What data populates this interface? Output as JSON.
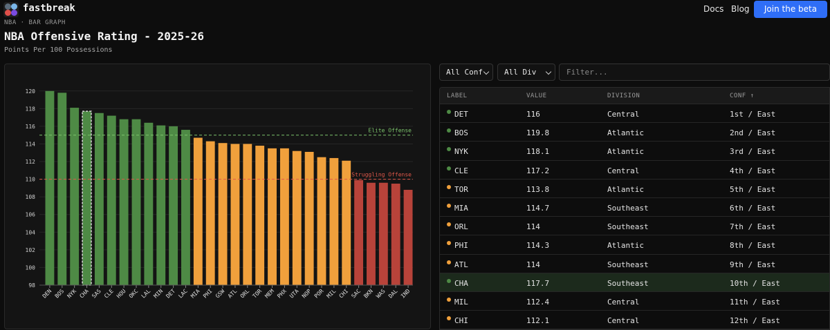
{
  "header": {
    "brand": "fastbreak",
    "nav": [
      {
        "label": "Docs"
      },
      {
        "label": "Blog"
      }
    ],
    "cta": "Join the beta"
  },
  "page": {
    "breadcrumb": "NBA · BAR GRAPH",
    "title": "NBA Offensive Rating - 2025-26",
    "subtitle": "Points Per 100 Possessions"
  },
  "controls": {
    "conf_select": "All Conf",
    "div_select": "All Div",
    "filter_placeholder": "Filter..."
  },
  "table": {
    "columns": [
      "LABEL",
      "VALUE",
      "DIVISION",
      "CONF ↑"
    ],
    "rows": [
      {
        "label": "DET",
        "value": "116",
        "division": "Central",
        "conf": "1st / East",
        "tier": "elite"
      },
      {
        "label": "BOS",
        "value": "119.8",
        "division": "Atlantic",
        "conf": "2nd / East",
        "tier": "elite"
      },
      {
        "label": "NYK",
        "value": "118.1",
        "division": "Atlantic",
        "conf": "3rd / East",
        "tier": "elite"
      },
      {
        "label": "CLE",
        "value": "117.2",
        "division": "Central",
        "conf": "4th / East",
        "tier": "elite"
      },
      {
        "label": "TOR",
        "value": "113.8",
        "division": "Atlantic",
        "conf": "5th / East",
        "tier": "mid"
      },
      {
        "label": "MIA",
        "value": "114.7",
        "division": "Southeast",
        "conf": "6th / East",
        "tier": "mid"
      },
      {
        "label": "ORL",
        "value": "114",
        "division": "Southeast",
        "conf": "7th / East",
        "tier": "mid"
      },
      {
        "label": "PHI",
        "value": "114.3",
        "division": "Atlantic",
        "conf": "8th / East",
        "tier": "mid"
      },
      {
        "label": "ATL",
        "value": "114",
        "division": "Southeast",
        "conf": "9th / East",
        "tier": "mid"
      },
      {
        "label": "CHA",
        "value": "117.7",
        "division": "Southeast",
        "conf": "10th / East",
        "tier": "elite",
        "highlighted": true
      },
      {
        "label": "MIL",
        "value": "112.4",
        "division": "Central",
        "conf": "11th / East",
        "tier": "mid"
      },
      {
        "label": "CHI",
        "value": "112.1",
        "division": "Central",
        "conf": "12th / East",
        "tier": "mid"
      }
    ]
  },
  "colors": {
    "elite": "#4e8a45",
    "mid": "#f0a03c",
    "struggling": "#b8433a",
    "elite_line": "#7cc46c",
    "struggling_line": "#e0584a",
    "accent": "#2f6ef7"
  },
  "chart_data": {
    "type": "bar",
    "title": "NBA Offensive Rating - 2025-26",
    "ylabel": "Points Per 100 Possessions",
    "ylim": [
      98,
      121
    ],
    "yticks": [
      98,
      100,
      102,
      104,
      106,
      108,
      110,
      112,
      114,
      116,
      118,
      120
    ],
    "categories": [
      "DEN",
      "BOS",
      "NYK",
      "CHA",
      "SAS",
      "CLE",
      "HOU",
      "OKC",
      "LAL",
      "MIN",
      "DET",
      "LAC",
      "MIA",
      "PHI",
      "GSW",
      "ATL",
      "ORL",
      "TOR",
      "MEM",
      "PHX",
      "UTA",
      "NOP",
      "POR",
      "MIL",
      "CHI",
      "SAC",
      "BKN",
      "WAS",
      "DAL",
      "IND"
    ],
    "values": [
      120.0,
      119.8,
      118.1,
      117.7,
      117.5,
      117.2,
      116.8,
      116.8,
      116.4,
      116.1,
      116.0,
      115.6,
      114.7,
      114.3,
      114.1,
      114.0,
      114.0,
      113.8,
      113.5,
      113.5,
      113.2,
      113.1,
      112.5,
      112.4,
      112.1,
      109.9,
      109.6,
      109.6,
      109.5,
      108.8
    ],
    "highlighted": "CHA",
    "reference_lines": [
      {
        "label": "Elite Offense",
        "value": 115
      },
      {
        "label": "Struggling Offense",
        "value": 110
      }
    ],
    "color_rule": "green >= 115, orange 110-115, red < 110",
    "grid": true
  }
}
